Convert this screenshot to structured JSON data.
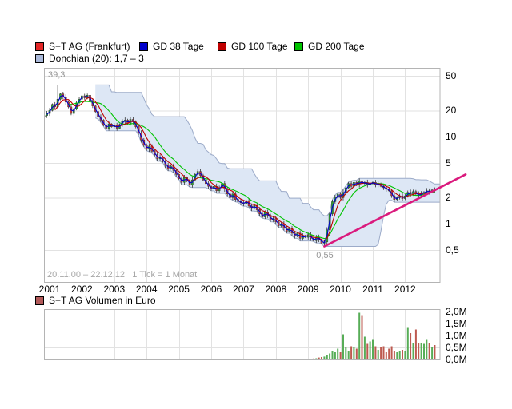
{
  "chart_data": {
    "type": "candlestick",
    "title": "S+T AG (Frankfurt)",
    "legend": {
      "items": [
        {
          "label": "S+T AG (Frankfurt)",
          "color": "#e42727"
        },
        {
          "label": "GD 38 Tage",
          "color": "#0000cc"
        },
        {
          "label": "GD 100 Tage",
          "color": "#c00000"
        },
        {
          "label": "GD 200 Tage",
          "color": "#00c400"
        },
        {
          "label": "Donchian (20): 1,7 – 3",
          "color": "#aab9da"
        }
      ]
    },
    "volume_legend": {
      "label": "S+T AG Volumen in Euro",
      "color": "#b25a5a"
    },
    "range_note": "20.11.00 – 22.12.12   1 Tick = 1 Monat",
    "annotations": {
      "high": {
        "label": "39,3",
        "index": 5,
        "value": 39.3
      },
      "low": {
        "label": "0,55",
        "index": 104,
        "value": 0.55
      }
    },
    "y_axis": {
      "scale": "log",
      "ticks": [
        {
          "label": "50",
          "value": 50
        },
        {
          "label": "20",
          "value": 20
        },
        {
          "label": "10",
          "value": 10
        },
        {
          "label": "5",
          "value": 5
        },
        {
          "label": "2",
          "value": 2
        },
        {
          "label": "1",
          "value": 1
        },
        {
          "label": "0,5",
          "value": 0.5
        }
      ]
    },
    "x_axis": {
      "years": [
        2001,
        2002,
        2003,
        2004,
        2005,
        2006,
        2007,
        2008,
        2009,
        2010,
        2011,
        2012
      ]
    },
    "volume_axis": {
      "ticks": [
        {
          "label": "2,0M",
          "value": 2.0
        },
        {
          "label": "1,5M",
          "value": 1.5
        },
        {
          "label": "1,0M",
          "value": 1.0
        },
        {
          "label": "0,5M",
          "value": 0.5
        },
        {
          "label": "0,0M",
          "value": 0.0
        }
      ]
    },
    "series": {
      "start": "2000-11",
      "interval": "1 Monat",
      "monthly_closes": [
        17.5,
        18.5,
        20,
        23.5,
        22,
        27,
        31,
        28.5,
        25,
        22,
        18.5,
        21,
        24.5,
        27,
        29.5,
        28,
        30,
        26,
        22.5,
        19.5,
        17,
        15.5,
        13.5,
        12.5,
        14,
        13,
        13.5,
        12.5,
        13.8,
        15,
        15.5,
        14.2,
        15.8,
        14.8,
        13,
        11,
        9.2,
        8,
        7.2,
        7.8,
        6.8,
        6.2,
        5.6,
        5.9,
        5.2,
        4.7,
        4.3,
        4.6,
        4.1,
        3.7,
        3.3,
        3.0,
        3.4,
        3.1,
        2.8,
        3.2,
        3.7,
        4.0,
        3.6,
        3.2,
        2.9,
        2.7,
        2.5,
        2.7,
        2.4,
        2.6,
        2.9,
        2.5,
        2.2,
        2.0,
        2.2,
        1.9,
        1.8,
        1.75,
        1.7,
        1.85,
        1.6,
        1.5,
        1.62,
        1.45,
        1.3,
        1.2,
        1.35,
        1.25,
        1.1,
        1.15,
        1.05,
        0.95,
        1.0,
        0.9,
        0.82,
        0.88,
        0.78,
        0.72,
        0.78,
        0.68,
        0.73,
        0.7,
        0.75,
        0.68,
        0.64,
        0.7,
        0.66,
        0.6,
        0.62,
        0.85,
        1.3,
        1.8,
        2.0,
        2.2,
        2.0,
        2.3,
        2.6,
        2.9,
        2.7,
        3.0,
        2.8,
        3.1,
        2.9,
        3.0,
        2.8,
        2.9,
        3.0,
        2.8,
        2.9,
        2.7,
        2.6,
        2.5,
        2.4,
        2.1,
        1.9,
        2.0,
        2.1,
        1.95,
        2.1,
        2.3,
        2.2,
        2.35,
        2.2,
        2.1,
        2.25,
        2.3,
        2.4,
        2.3,
        2.45,
        2.4
      ]
    },
    "volumes": {
      "unit": "millions_eur",
      "start_index": 96,
      "values": [
        0.02,
        0.02,
        0.03,
        0.03,
        0.04,
        0.05,
        0.08,
        0.1,
        0.12,
        0.18,
        0.25,
        0.35,
        0.3,
        0.45,
        0.3,
        1.05,
        0.5,
        0.35,
        0.55,
        0.5,
        0.45,
        1.95,
        1.85,
        0.95,
        0.65,
        0.75,
        0.85,
        0.55,
        0.4,
        0.5,
        0.55,
        0.3,
        0.45,
        0.55,
        0.35,
        0.3,
        0.35,
        0.4,
        0.35,
        1.35,
        1.1,
        0.7,
        1.25,
        0.7,
        0.7,
        0.65,
        0.85,
        0.7,
        0.5,
        0.6
      ]
    },
    "overlays": {
      "gd38": {
        "window_months": 2,
        "color": "#0000cc"
      },
      "gd100": {
        "window_months": 5,
        "color": "#c00000"
      },
      "gd200": {
        "window_months": 10,
        "color": "#00c400"
      },
      "donchian": {
        "window": 20,
        "fill": "#dde7f5",
        "stroke": "#9cabc9",
        "current": "1,7 – 3"
      },
      "trendline": {
        "color": "#da1a7d",
        "start_index": 104,
        "start_price": 0.55,
        "end_index": 156.5,
        "end_price": 3.7
      }
    },
    "candle_up_color": "#2fa12f",
    "candle_down_color": "#c23a3a",
    "volume_up_color": "#57ad57",
    "volume_down_color": "#bd5a50",
    "grid_color": "#e2e2e2",
    "border_color": "#b4b4b4"
  }
}
